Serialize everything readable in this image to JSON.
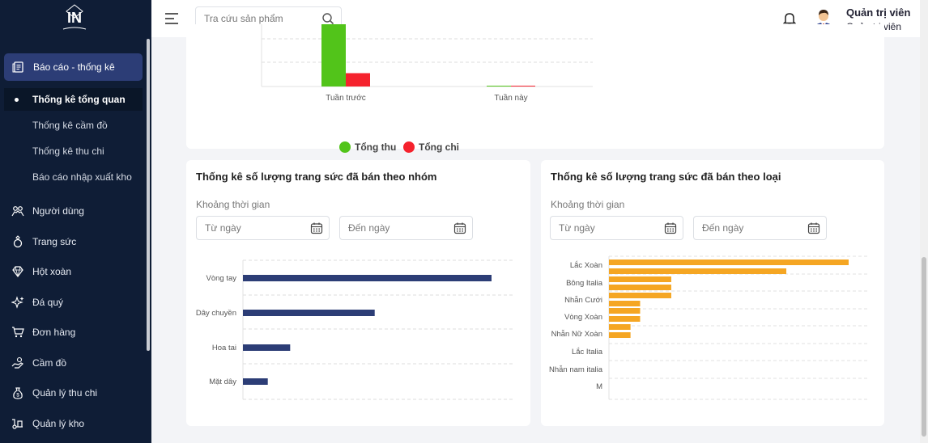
{
  "sidebar": {
    "logo_text": "IN",
    "active_section": "Báo cáo - thống kê",
    "sub_items": [
      "Thống kê tổng quan",
      "Thống kê cầm đồ",
      "Thống kê thu chi",
      "Báo cáo nhập xuất kho"
    ],
    "items": [
      {
        "label": "Người dùng",
        "icon": "users-icon"
      },
      {
        "label": "Trang sức",
        "icon": "ring-icon"
      },
      {
        "label": "Hột xoàn",
        "icon": "diamond-icon"
      },
      {
        "label": "Đá quý",
        "icon": "sparkle-icon"
      },
      {
        "label": "Đơn hàng",
        "icon": "cart-icon"
      },
      {
        "label": "Cầm đồ",
        "icon": "hand-coin-icon"
      },
      {
        "label": "Quản lý thu chi",
        "icon": "money-bag-icon"
      },
      {
        "label": "Quản lý kho",
        "icon": "warehouse-icon"
      }
    ]
  },
  "header": {
    "search_placeholder": "Tra cứu sản phẩm",
    "user_name": "Quản trị viên",
    "user_role": "Quản trị viên"
  },
  "top_chart": {
    "chart_data": {
      "type": "bar",
      "categories": [
        "Tuần trước",
        "Tuần này"
      ],
      "series": [
        {
          "name": "Tổng thu",
          "values": [
            100,
            0.1
          ]
        },
        {
          "name": "Tổng chi",
          "values": [
            15,
            0.3
          ]
        }
      ],
      "colors": [
        "#52c41a",
        "#f5222d"
      ]
    }
  },
  "group_card": {
    "title": "Thống kê số lượng trang sức đã bán theo nhóm",
    "range_label": "Khoảng thời gian",
    "from_placeholder": "Từ ngày",
    "to_placeholder": "Đến ngày",
    "chart_data": {
      "type": "bar",
      "orientation": "horizontal",
      "categories": [
        "Vòng tay",
        "Dây chuyền",
        "Hoa tai",
        "Mặt dây"
      ],
      "values": [
        100,
        53,
        19,
        10
      ],
      "color": "#2c3d76"
    }
  },
  "type_card": {
    "title": "Thống kê số lượng trang sức đã bán theo loại",
    "range_label": "Khoảng thời gian",
    "from_placeholder": "Từ ngày",
    "to_placeholder": "Đến ngày",
    "chart_data": {
      "type": "bar",
      "orientation": "horizontal",
      "categories": [
        "Lắc Xoàn",
        "Bông Italia",
        "Nhẫn Cưới",
        "Vòng Xoàn",
        "Nhẫn Nữ Xoàn",
        "Lắc Italia",
        "Nhẫn nam italia",
        "M"
      ],
      "bars": [
        100,
        74,
        26,
        26,
        13,
        13,
        9,
        9
      ],
      "color": "#f5a623"
    }
  }
}
